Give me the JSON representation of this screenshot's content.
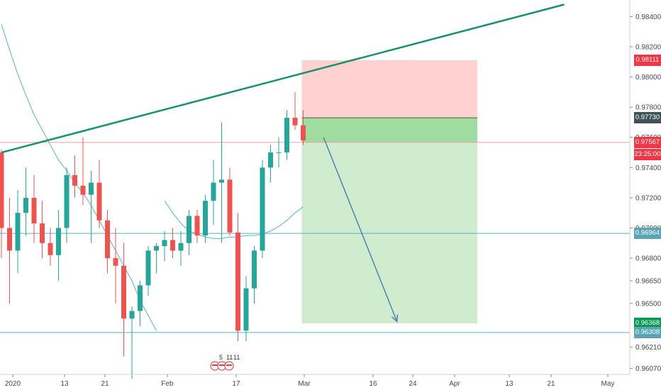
{
  "chart_data": {
    "type": "candlestick",
    "instrument": "",
    "x_tick_labels": [
      "2020",
      "13",
      "21",
      "Feb",
      "17",
      "Mar",
      "16",
      "24",
      "Apr",
      "13",
      "21",
      "May"
    ],
    "y_tick_labels": [
      "0.98400",
      "0.98200",
      "0.98000",
      "0.97800",
      "0.97600",
      "0.97400",
      "0.97200",
      "0.97000",
      "0.96800",
      "0.96650",
      "0.96500",
      "0.96210",
      "0.96070"
    ],
    "ylim": [
      0.9603,
      0.9851
    ],
    "candles": [
      {
        "o": 0.975,
        "h": 0.9752,
        "l": 0.968,
        "c": 0.97
      },
      {
        "o": 0.97,
        "h": 0.972,
        "l": 0.965,
        "c": 0.9685
      },
      {
        "o": 0.9685,
        "h": 0.9725,
        "l": 0.967,
        "c": 0.971
      },
      {
        "o": 0.971,
        "h": 0.974,
        "l": 0.9695,
        "c": 0.972
      },
      {
        "o": 0.972,
        "h": 0.9735,
        "l": 0.969,
        "c": 0.9703
      },
      {
        "o": 0.9703,
        "h": 0.9718,
        "l": 0.968,
        "c": 0.969
      },
      {
        "o": 0.969,
        "h": 0.97,
        "l": 0.9675,
        "c": 0.9682
      },
      {
        "o": 0.9682,
        "h": 0.9712,
        "l": 0.9665,
        "c": 0.97
      },
      {
        "o": 0.97,
        "h": 0.974,
        "l": 0.969,
        "c": 0.9735
      },
      {
        "o": 0.9735,
        "h": 0.9748,
        "l": 0.972,
        "c": 0.9728
      },
      {
        "o": 0.9728,
        "h": 0.976,
        "l": 0.9715,
        "c": 0.9722
      },
      {
        "o": 0.9722,
        "h": 0.9738,
        "l": 0.969,
        "c": 0.973
      },
      {
        "o": 0.973,
        "h": 0.9745,
        "l": 0.97,
        "c": 0.9705
      },
      {
        "o": 0.9705,
        "h": 0.9712,
        "l": 0.967,
        "c": 0.968
      },
      {
        "o": 0.968,
        "h": 0.97,
        "l": 0.965,
        "c": 0.9675
      },
      {
        "o": 0.9675,
        "h": 0.969,
        "l": 0.9615,
        "c": 0.964
      },
      {
        "o": 0.964,
        "h": 0.9648,
        "l": 0.96,
        "c": 0.9645
      },
      {
        "o": 0.9645,
        "h": 0.9665,
        "l": 0.9635,
        "c": 0.9662
      },
      {
        "o": 0.9662,
        "h": 0.9688,
        "l": 0.9655,
        "c": 0.9685
      },
      {
        "o": 0.9685,
        "h": 0.969,
        "l": 0.967,
        "c": 0.9688
      },
      {
        "o": 0.9688,
        "h": 0.9698,
        "l": 0.9678,
        "c": 0.9692
      },
      {
        "o": 0.9692,
        "h": 0.97,
        "l": 0.968,
        "c": 0.9685
      },
      {
        "o": 0.9685,
        "h": 0.9698,
        "l": 0.9675,
        "c": 0.969
      },
      {
        "o": 0.969,
        "h": 0.9712,
        "l": 0.9682,
        "c": 0.9708
      },
      {
        "o": 0.9708,
        "h": 0.9712,
        "l": 0.969,
        "c": 0.9695
      },
      {
        "o": 0.9695,
        "h": 0.9722,
        "l": 0.969,
        "c": 0.9718
      },
      {
        "o": 0.9718,
        "h": 0.9745,
        "l": 0.9702,
        "c": 0.973
      },
      {
        "o": 0.973,
        "h": 0.977,
        "l": 0.969,
        "c": 0.9732
      },
      {
        "o": 0.9732,
        "h": 0.974,
        "l": 0.9695,
        "c": 0.9697
      },
      {
        "o": 0.9697,
        "h": 0.971,
        "l": 0.9625,
        "c": 0.9632
      },
      {
        "o": 0.9632,
        "h": 0.9668,
        "l": 0.9625,
        "c": 0.966
      },
      {
        "o": 0.966,
        "h": 0.9688,
        "l": 0.965,
        "c": 0.9685
      },
      {
        "o": 0.9685,
        "h": 0.9745,
        "l": 0.968,
        "c": 0.974
      },
      {
        "o": 0.974,
        "h": 0.9755,
        "l": 0.973,
        "c": 0.975
      },
      {
        "o": 0.975,
        "h": 0.976,
        "l": 0.974,
        "c": 0.975
      },
      {
        "o": 0.975,
        "h": 0.9778,
        "l": 0.9745,
        "c": 0.9773
      },
      {
        "o": 0.9773,
        "h": 0.979,
        "l": 0.9765,
        "c": 0.9768
      },
      {
        "o": 0.9768,
        "h": 0.9778,
        "l": 0.9755,
        "c": 0.9758
      }
    ],
    "moving_average": [
      0.9835,
      0.9818,
      0.9802,
      0.9788,
      0.9775,
      0.9765,
      0.9755,
      0.9745,
      0.9738,
      0.973,
      0.9723,
      0.9715,
      0.9705,
      0.9695,
      0.9685,
      0.9675,
      0.9665,
      0.9652,
      0.9642,
      0.9632,
      0.9718,
      0.971,
      0.9703,
      0.9698,
      0.9696,
      0.9694,
      0.9693,
      0.9693,
      0.9694,
      0.9694,
      0.9695,
      0.9695,
      0.9696,
      0.9698,
      0.9701,
      0.9705,
      0.971,
      0.9714
    ],
    "trendline": {
      "start_index": 0,
      "start_price": 0.975,
      "end_index": 69,
      "end_price": 0.9848
    },
    "position": {
      "start_index": 37,
      "end_index": 58,
      "entry": 0.9773,
      "stop": 0.98111,
      "target": 0.96368,
      "current": 0.97567
    },
    "projection_arrow": {
      "start_index": 39.5,
      "start_price": 0.976,
      "end_index": 48.5,
      "end_price": 0.9638
    },
    "horizontal_lines": [
      0.96964,
      0.96308
    ],
    "price_labels": [
      {
        "value": 0.98111,
        "text": "0.98111",
        "color": "#f23645"
      },
      {
        "value": 0.9773,
        "text": "0.97730",
        "color": "#3e5355"
      },
      {
        "value": 0.97567,
        "text": "0.97567",
        "color": "#f23645"
      },
      {
        "value": 0.96964,
        "text": "0.96964",
        "color": "#5aa5b5"
      },
      {
        "value": 0.96368,
        "text": "0.96368",
        "color": "#089950"
      },
      {
        "value": 0.96308,
        "text": "0.96308",
        "color": "#5aa5b5"
      }
    ],
    "countdown": "23:25:00",
    "events": [
      "5",
      "11",
      "11"
    ],
    "colors": {
      "up": "#26a69a",
      "down": "#ef5350",
      "trendline": "#13936f",
      "ma": "#55b5c5",
      "stop_zone": "#ffcccc",
      "target_zone": "#cfeccf",
      "entry_zone": "#9fdc9f"
    }
  }
}
